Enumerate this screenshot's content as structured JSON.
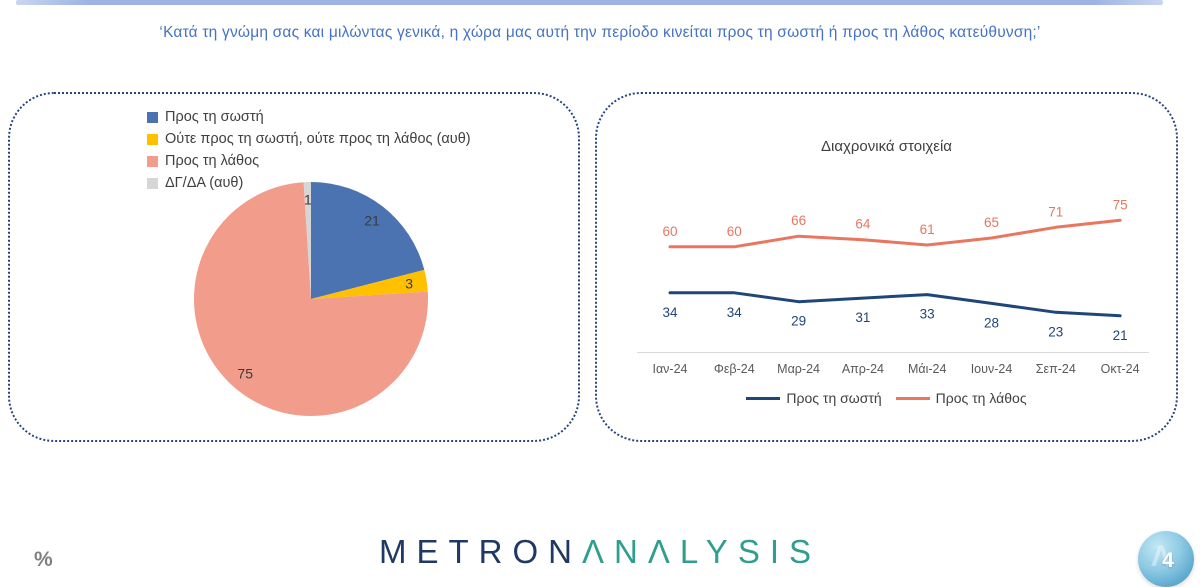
{
  "header": {
    "title": "‘Κατά τη γνώμη σας και μιλώντας γενικά, η χώρα μας αυτή την περίοδο κινείται προς τη σωστή ή προς τη λάθος κατεύθυνση;’",
    "accent_bar_color": "#9db4e5"
  },
  "chart_data": [
    {
      "type": "pie",
      "labels": [
        "Προς τη σωστή",
        "Ούτε προς τη σωστή, ούτε προς τη λάθος (αυθ)",
        "Προς τη λάθος",
        "ΔΓ/ΔΑ (αυθ)"
      ],
      "values": [
        21,
        3,
        75,
        1
      ],
      "colors": [
        "#4b73b1",
        "#ffc000",
        "#f29c8b",
        "#d6d6d6"
      ],
      "start_angle_deg": 0,
      "direction": "clockwise",
      "legend_position": "top-left",
      "data_label_color": "#3b3b3b"
    },
    {
      "type": "line",
      "title": "Διαχρονικά στοιχεία",
      "categories": [
        "Ιαν-24",
        "Φεβ-24",
        "Μαρ-24",
        "Απρ-24",
        "Μάι-24",
        "Ιουν-24",
        "Σεπ-24",
        "Οκτ-24"
      ],
      "series": [
        {
          "name": "Προς τη σωστή",
          "color": "#1f4679",
          "values": [
            34,
            34,
            29,
            31,
            33,
            28,
            23,
            21
          ],
          "label_position": "below"
        },
        {
          "name": "Προς τη λάθος",
          "color": "#e87660",
          "values": [
            60,
            60,
            66,
            64,
            61,
            65,
            71,
            75
          ],
          "label_position": "above"
        }
      ],
      "ylim": [
        0,
        100
      ],
      "gridlines": false,
      "legend_position": "bottom",
      "axis_color": "#d9d9d9",
      "tick_label_color": "#595959"
    }
  ],
  "footer": {
    "percent_label": "%",
    "logo_metron": "METRON",
    "logo_analysis": "ΛNΛLYSIS",
    "page_number": "4",
    "badge_watermark": "Λ"
  }
}
